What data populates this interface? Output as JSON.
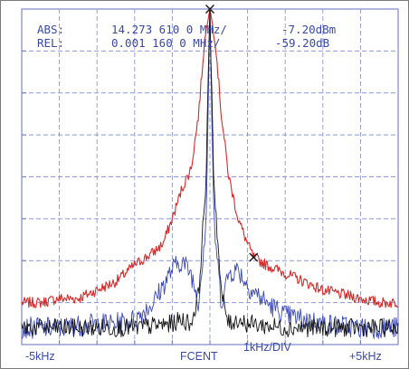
{
  "chart_data": {
    "type": "line",
    "readout": {
      "abs_label": "ABS:",
      "abs_freq": "14.273 610 0 MHz/",
      "abs_level": "-7.20dBm",
      "rel_label": "REL:",
      "rel_freq": "0.001 160 0 MHz/",
      "rel_level": "-59.20dB"
    },
    "x_tick_labels": {
      "left": "-5kHz",
      "center": "FCENT",
      "scale": "1kHz/DIV",
      "right": "+5kHz"
    },
    "xlim": [
      -5,
      5
    ],
    "ylim": [
      -80,
      0
    ],
    "x_unit": "kHz",
    "y_unit": "dB (10 dB/div)",
    "grid": true,
    "markers": [
      {
        "x": 0.0,
        "y": 0
      },
      {
        "x": 1.16,
        "y": -59.2
      }
    ],
    "series": [
      {
        "color": "#d42a2a",
        "x": [
          -5,
          -4.5,
          -4,
          -3.5,
          -3,
          -2.5,
          -2,
          -1.5,
          -1.25,
          -1,
          -0.75,
          -0.5,
          -0.3,
          -0.15,
          0,
          0.15,
          0.3,
          0.5,
          0.75,
          1,
          1.16,
          1.5,
          2,
          2.5,
          3,
          3.5,
          4,
          4.5,
          5
        ],
        "y": [
          -70,
          -70,
          -69,
          -69,
          -67,
          -65,
          -61,
          -58,
          -56,
          -50,
          -43,
          -38,
          -25,
          -8,
          0,
          -8,
          -25,
          -40,
          -50,
          -56,
          -59.2,
          -61,
          -63,
          -65,
          -67,
          -68,
          -69,
          -70,
          -70
        ]
      },
      {
        "color": "#3a48b4",
        "x": [
          -5,
          -4,
          -3,
          -2.5,
          -2,
          -1.5,
          -1,
          -0.75,
          -0.5,
          -0.3,
          -0.1,
          0,
          0.1,
          0.3,
          0.5,
          0.75,
          1,
          1.5,
          2,
          2.5,
          3,
          4,
          5
        ],
        "y": [
          -76,
          -76,
          -75,
          -75,
          -74,
          -70,
          -62,
          -60,
          -63,
          -70,
          -50,
          0,
          -50,
          -70,
          -63,
          -62,
          -66,
          -70,
          -73,
          -74,
          -75,
          -76,
          -76
        ]
      },
      {
        "color": "#141414",
        "x": [
          -5,
          -4,
          -3,
          -2,
          -1,
          -0.75,
          -0.5,
          -0.3,
          -0.1,
          0,
          0.1,
          0.3,
          0.5,
          0.75,
          1,
          2,
          3,
          4,
          5
        ],
        "y": [
          -76,
          -76,
          -76,
          -76,
          -75,
          -74,
          -75,
          -68,
          -40,
          0,
          -40,
          -68,
          -75,
          -74,
          -75,
          -76,
          -76,
          -76,
          -76
        ]
      }
    ]
  }
}
